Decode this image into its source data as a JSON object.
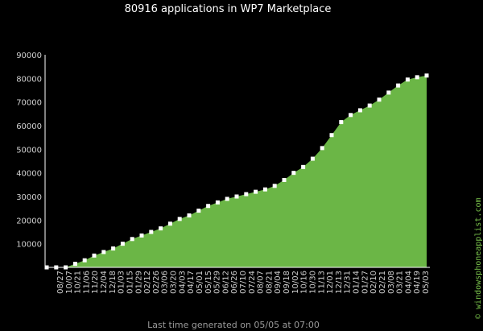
{
  "chart_data": {
    "type": "area",
    "title": "80916 applications in WP7 Marketplace",
    "footer": "Last time generated on 05/05 at 07:00",
    "credit": "© windowsphoneapplist.com",
    "ylim": [
      0,
      90000
    ],
    "yticks": [
      90000,
      80000,
      70000,
      60000,
      50000,
      40000,
      30000,
      20000,
      10000
    ],
    "xticks": [
      "08/27",
      "10/07",
      "10/21",
      "11/06",
      "11/20",
      "12/04",
      "12/18",
      "01/03",
      "01/15",
      "01/29",
      "02/12",
      "02/26",
      "03/06",
      "03/20",
      "04/03",
      "04/17",
      "05/01",
      "05/15",
      "05/29",
      "06/12",
      "06/26",
      "07/10",
      "07/24",
      "08/07",
      "08/21",
      "09/04",
      "09/18",
      "10/02",
      "10/16",
      "10/30",
      "11/13",
      "12/01",
      "12/13",
      "12/31",
      "01/14",
      "01/27",
      "02/10",
      "02/21",
      "03/08",
      "03/21",
      "04/04",
      "04/19",
      "05/03"
    ],
    "values": [
      0,
      0,
      0,
      1500,
      3000,
      5000,
      6500,
      8000,
      10000,
      12000,
      13500,
      15000,
      16500,
      18500,
      20500,
      22000,
      24000,
      26000,
      27500,
      29000,
      30000,
      31000,
      32000,
      33000,
      34500,
      37000,
      40000,
      42500,
      46000,
      50500,
      56000,
      61500,
      64500,
      66500,
      68500,
      71000,
      74000,
      77000,
      79500,
      80500,
      81200
    ],
    "grid": false,
    "colors": {
      "fill": "#6bb646",
      "marker": "#ffffff",
      "axis": "#ffffff",
      "background": "#000000"
    }
  }
}
